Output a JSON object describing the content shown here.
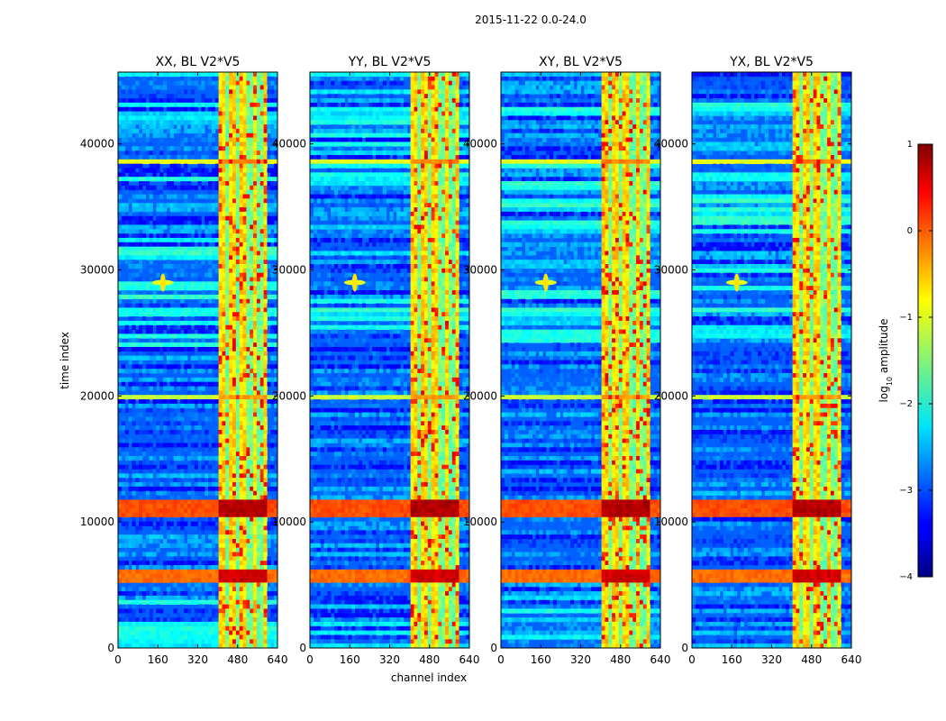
{
  "figure": {
    "suptitle": "2015-11-22 0.0-24.0"
  },
  "chart_data": {
    "type": "heatmap",
    "panels": [
      {
        "title": "XX, BL V2*V5"
      },
      {
        "title": "YY, BL V2*V5"
      },
      {
        "title": "XY, BL V2*V5"
      },
      {
        "title": "YX, BL V2*V5"
      }
    ],
    "xlabel": "channel index",
    "ylabel": "time index",
    "xlim": [
      0,
      640
    ],
    "ylim": [
      0,
      45700
    ],
    "xticks": [
      0,
      160,
      320,
      480,
      640
    ],
    "yticks": [
      0,
      10000,
      20000,
      30000,
      40000
    ],
    "colorbar": {
      "label_prefix": "log",
      "label_sub": "10",
      "label_suffix": " amplitude",
      "range": [
        -4,
        1
      ],
      "ticks": [
        1,
        0,
        -1,
        -2,
        -3,
        -4
      ],
      "tick_labels": [
        "1",
        "0",
        "−1",
        "−2",
        "−3",
        "−4"
      ],
      "colormap": "jet"
    },
    "hot_channel_band": [
      405,
      600
    ],
    "strong_time_bands": [
      {
        "start": 5200,
        "end": 6300,
        "level": 0.92
      },
      {
        "start": 10500,
        "end": 11900,
        "level": 0.95
      },
      {
        "start": 19800,
        "end": 20200,
        "level": 0.72
      },
      {
        "start": 38500,
        "end": 38800,
        "level": 0.75
      }
    ],
    "transient_feature": {
      "channel": 180,
      "time": 29000
    }
  },
  "colors": {
    "background": "#ffffff",
    "axis": "#000000"
  }
}
